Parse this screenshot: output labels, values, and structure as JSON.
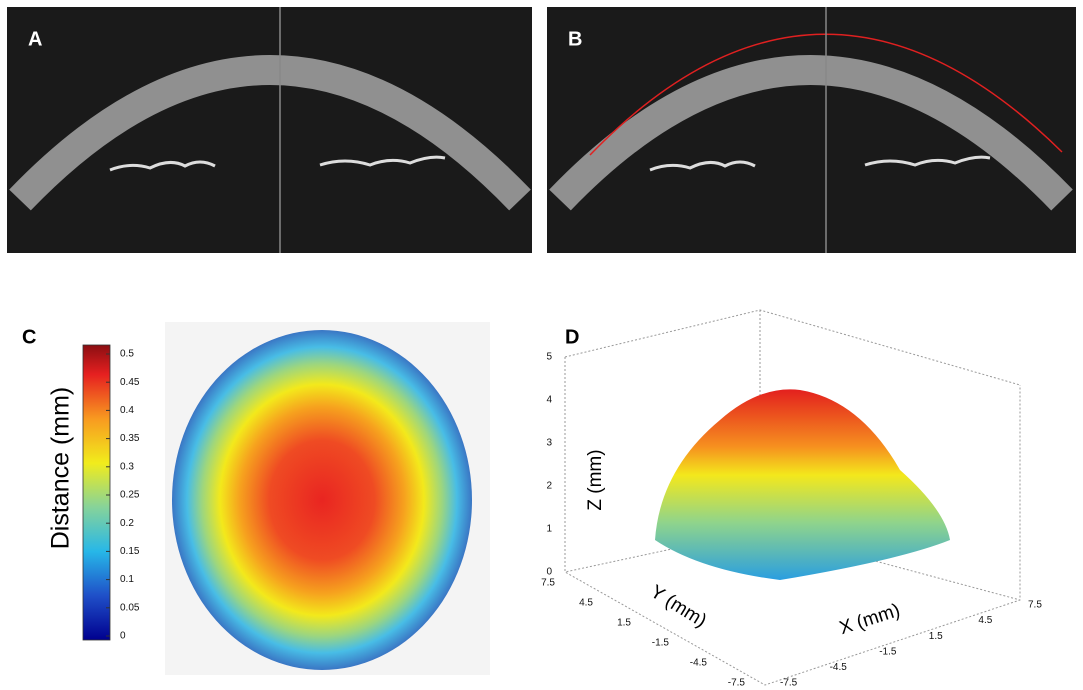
{
  "panels": {
    "a": {
      "label": "A"
    },
    "b": {
      "label": "B"
    },
    "c": {
      "label": "C",
      "colorbar": {
        "title": "Distance (mm)",
        "ticks": [
          0,
          0.05,
          0.1,
          0.15,
          0.2,
          0.25,
          0.3,
          0.35,
          0.4,
          0.45,
          0.5
        ]
      }
    },
    "d": {
      "label": "D",
      "z_label": "Z (mm)",
      "y_label": "Y (mm)",
      "x_label": "X (mm)",
      "z_ticks": [
        0,
        1,
        2,
        3,
        4,
        5
      ],
      "y_ticks": [
        7.5,
        4.5,
        1.5,
        -1.5,
        -4.5,
        -7.5
      ],
      "x_ticks": [
        -7.5,
        -4.5,
        -1.5,
        1.5,
        4.5,
        7.5
      ]
    }
  }
}
